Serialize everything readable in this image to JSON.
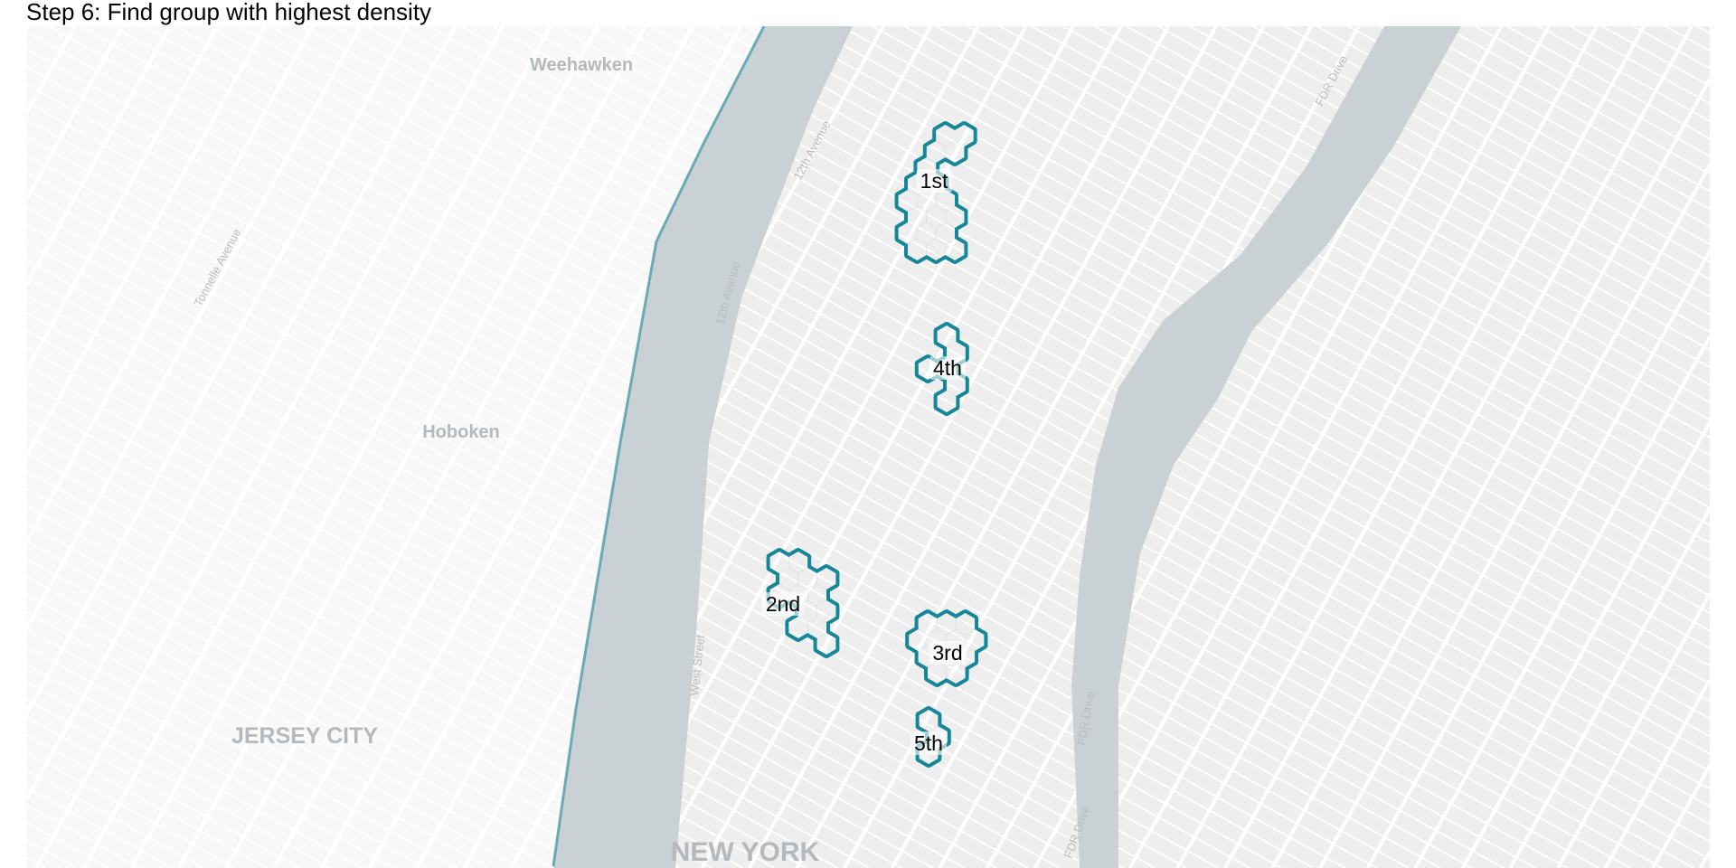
{
  "title": "Step 6: Find group with highest density",
  "colors": {
    "outline": "#16879a",
    "outline_inner": "#a8d5dc",
    "land": "#eeeeee",
    "street": "#ffffff",
    "water": "#c9d1d5",
    "boundary": "#6aaab5"
  },
  "places": {
    "weehawken": "Weehawken",
    "hoboken": "Hoboken",
    "jersey_city": "JERSEY CITY",
    "new_york": "NEW YORK"
  },
  "streets": {
    "twelfth_ave_a": "12th Avenue",
    "twelfth_ave_b": "12th Avenue",
    "tonnelle": "Tonnelle Avenue",
    "west_street": "West Street",
    "fdr_a": "FDR Drive",
    "fdr_b": "FDR Drive",
    "fdr_c": "FDR Drive"
  },
  "groups": [
    {
      "rank": "1st"
    },
    {
      "rank": "2nd"
    },
    {
      "rank": "3rd"
    },
    {
      "rank": "4th"
    },
    {
      "rank": "5th"
    }
  ]
}
